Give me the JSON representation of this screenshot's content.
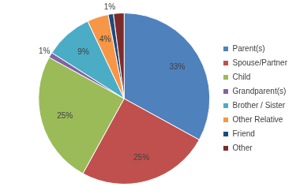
{
  "chart_data": {
    "type": "pie",
    "categories": [
      "Parent(s)",
      "Spouse/Partner",
      "Child",
      "Grandparent(s)",
      "Brother / Sister",
      "Other Relative",
      "Friend",
      "Other"
    ],
    "values": [
      33,
      25,
      25,
      1,
      9,
      4,
      1,
      2
    ],
    "value_labels": [
      "33%",
      "25%",
      "25%",
      "1%",
      "9%",
      "4%",
      "1%",
      null
    ],
    "colors": [
      "#4f81bd",
      "#c0504d",
      "#9bbb59",
      "#8064a2",
      "#4bacc6",
      "#f79646",
      "#1f497d",
      "#7b2c2a"
    ],
    "legend": "right",
    "data_labels": true
  }
}
